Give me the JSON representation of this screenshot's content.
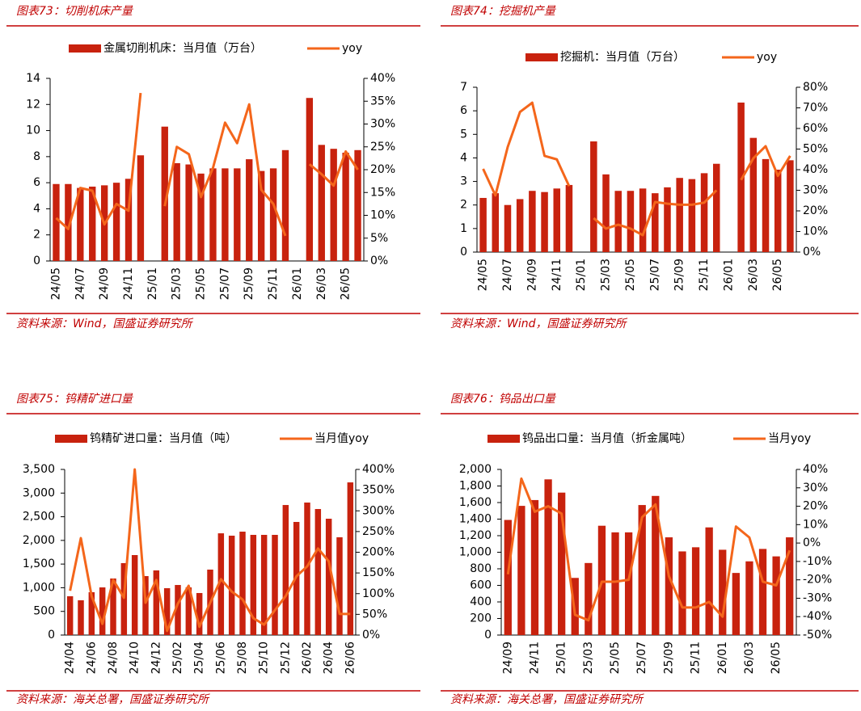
{
  "chart_data": [
    {
      "type": "bar-line",
      "title": "图表73：切削机床产量",
      "source": "资料来源：Wind，国盛证券研究所",
      "categories": [
        "24/05",
        null,
        "24/07",
        null,
        "24/09",
        null,
        "24/11",
        null,
        "25/01",
        null,
        "25/03",
        null,
        "25/05",
        null,
        "25/07",
        null,
        "25/09",
        null,
        "25/11",
        null,
        "26/01",
        null,
        "26/03",
        null,
        "26/05",
        null
      ],
      "series": [
        {
          "name": "金属切削机床：当月值（万台）",
          "type": "bar",
          "color": "#c8220e",
          "values": [
            5.9,
            5.9,
            5.6,
            5.7,
            5.8,
            6.0,
            6.3,
            8.1,
            null,
            10.3,
            7.5,
            7.4,
            6.7,
            7.1,
            7.1,
            7.1,
            7.8,
            6.9,
            7.1,
            8.5,
            null,
            12.5,
            8.9,
            8.6,
            8.3,
            8.5
          ]
        },
        {
          "name": "yoy",
          "type": "line",
          "axis": "y2",
          "color": "#f4661b",
          "values": [
            9.4,
            7,
            16,
            15.4,
            8,
            12.5,
            11,
            36.8,
            null,
            12,
            25,
            23.4,
            14,
            20.4,
            30.3,
            25.8,
            34.3,
            15.6,
            12.5,
            5.5,
            null,
            21.2,
            19,
            16.5,
            24,
            20
          ]
        }
      ],
      "ylim": [
        0,
        14
      ],
      "yticks": [
        0,
        2,
        4,
        6,
        8,
        10,
        12,
        14
      ],
      "y2lim": [
        0,
        40
      ],
      "y2ticks": [
        {
          "value": 0,
          "label": "0%"
        },
        {
          "value": 5,
          "label": "5%"
        },
        {
          "value": 10,
          "label": "10%"
        },
        {
          "value": 15,
          "label": "15%"
        },
        {
          "value": 20,
          "label": "20%"
        },
        {
          "value": 25,
          "label": "25%"
        },
        {
          "value": 30,
          "label": "30%"
        },
        {
          "value": 35,
          "label": "35%"
        },
        {
          "value": 40,
          "label": "40%"
        }
      ]
    },
    {
      "type": "bar-line",
      "title": "图表74：挖掘机产量",
      "source": "资料来源：Wind，国盛证券研究所",
      "categories": [
        "24/05",
        null,
        "24/07",
        null,
        "24/09",
        null,
        "24/11",
        null,
        "25/01",
        null,
        "25/03",
        null,
        "25/05",
        null,
        "25/07",
        null,
        "25/09",
        null,
        "25/11",
        null,
        "26/01",
        null,
        "26/03",
        null,
        "26/05",
        null
      ],
      "series": [
        {
          "name": "挖掘机：当月值（万台）",
          "type": "bar",
          "color": "#c8220e",
          "values": [
            2.3,
            2.5,
            2.0,
            2.25,
            2.6,
            2.55,
            2.7,
            2.85,
            null,
            4.7,
            3.3,
            2.6,
            2.6,
            2.7,
            2.5,
            2.75,
            3.15,
            3.1,
            3.35,
            3.75,
            null,
            6.35,
            4.85,
            3.95,
            3.5,
            3.9
          ]
        },
        {
          "name": "yoy",
          "type": "line",
          "axis": "y2",
          "color": "#f4661b",
          "values": [
            40.4,
            27.5,
            51,
            68,
            72.5,
            46.7,
            45,
            32,
            null,
            16.5,
            11.4,
            13.3,
            11.4,
            8.2,
            24.3,
            23.5,
            23,
            23,
            24,
            30,
            null,
            35,
            45.5,
            51.4,
            37,
            46.7
          ]
        }
      ],
      "ylim": [
        0,
        7
      ],
      "yticks": [
        0,
        1,
        2,
        3,
        4,
        5,
        6,
        7
      ],
      "y2lim": [
        0,
        80
      ],
      "y2ticks": [
        {
          "value": 0,
          "label": "0%"
        },
        {
          "value": 10,
          "label": "10%"
        },
        {
          "value": 20,
          "label": "20%"
        },
        {
          "value": 30,
          "label": "30%"
        },
        {
          "value": 40,
          "label": "40%"
        },
        {
          "value": 50,
          "label": "50%"
        },
        {
          "value": 60,
          "label": "60%"
        },
        {
          "value": 70,
          "label": "70%"
        },
        {
          "value": 80,
          "label": "80%"
        }
      ]
    },
    {
      "type": "bar-line",
      "title": "图表75：钨精矿进口量",
      "source": "资料来源：海关总署，国盛证券研究所",
      "categories": [
        "24/04",
        null,
        "24/06",
        null,
        "24/08",
        null,
        "24/10",
        null,
        "24/12",
        null,
        "25/02",
        null,
        "25/04",
        null,
        "25/06",
        null,
        "25/08",
        null,
        "25/10",
        null,
        "25/12",
        null,
        "26/02",
        null,
        "26/04",
        null,
        "26/06"
      ],
      "series": [
        {
          "name": "钨精矿进口量：当月值（吨）",
          "type": "bar",
          "color": "#c8220e",
          "values": [
            820,
            735,
            905,
            1007,
            1195,
            1520,
            1690,
            1246,
            1366,
            990,
            1058,
            1007,
            888,
            1383,
            2150,
            2100,
            2185,
            2117,
            2117,
            2117,
            2748,
            2390,
            2800,
            2663,
            2458,
            2066,
            3226
          ]
        },
        {
          "name": "当月值yoy",
          "type": "line",
          "axis": "y2",
          "color": "#f4661b",
          "values": [
            107,
            234,
            94,
            27,
            133,
            90,
            400,
            78,
            133,
            10,
            76,
            119,
            20,
            78,
            135,
            105,
            86,
            41,
            25,
            60,
            94,
            142,
            166,
            209,
            178,
            51,
            51
          ]
        }
      ],
      "ylim": [
        0,
        3500
      ],
      "yticks": [
        0,
        500,
        {
          "value": 1000,
          "label": "1,000"
        },
        {
          "value": 1500,
          "label": "1,500"
        },
        {
          "value": 2000,
          "label": "2,000"
        },
        {
          "value": 2500,
          "label": "2,500"
        },
        {
          "value": 3000,
          "label": "3,000"
        },
        {
          "value": 3500,
          "label": "3,500"
        }
      ],
      "y2lim": [
        0,
        400
      ],
      "y2ticks": [
        {
          "value": 0,
          "label": "0%"
        },
        {
          "value": 50,
          "label": "50%"
        },
        {
          "value": 100,
          "label": "100%"
        },
        {
          "value": 150,
          "label": "150%"
        },
        {
          "value": 200,
          "label": "200%"
        },
        {
          "value": 250,
          "label": "250%"
        },
        {
          "value": 300,
          "label": "300%"
        },
        {
          "value": 350,
          "label": "350%"
        },
        {
          "value": 400,
          "label": "400%"
        }
      ]
    },
    {
      "type": "bar-line",
      "title": "图表76：钨品出口量",
      "source": "资料来源：海关总署，国盛证券研究所",
      "categories": [
        "24/09",
        null,
        "24/11",
        null,
        "25/01",
        null,
        "25/03",
        null,
        "25/05",
        null,
        "25/07",
        null,
        "25/09",
        null,
        "25/11",
        null,
        "26/01",
        null,
        "26/03",
        null,
        "26/05",
        null
      ],
      "series": [
        {
          "name": "钨品出口量：当月值（折金属吨）",
          "type": "bar",
          "color": "#c8220e",
          "values": [
            1390,
            1560,
            1630,
            1880,
            1720,
            690,
            870,
            1320,
            1240,
            1240,
            1570,
            1680,
            1180,
            1010,
            1060,
            1300,
            1030,
            750,
            890,
            1040,
            950,
            1180
          ]
        },
        {
          "name": "当月yoy",
          "type": "line",
          "axis": "y2",
          "color": "#f4661b",
          "values": [
            -17,
            35,
            17,
            20,
            16,
            -39,
            -42,
            -21,
            -21,
            -20,
            14,
            21,
            -18,
            -35,
            -35,
            -32,
            -40,
            9,
            3,
            -21,
            -23,
            -4
          ]
        }
      ],
      "ylim": [
        0,
        2000
      ],
      "yticks": [
        0,
        200,
        400,
        600,
        800,
        {
          "value": 1000,
          "label": "1,000"
        },
        {
          "value": 1200,
          "label": "1,200"
        },
        {
          "value": 1400,
          "label": "1,400"
        },
        {
          "value": 1600,
          "label": "1,600"
        },
        {
          "value": 1800,
          "label": "1,800"
        },
        {
          "value": 2000,
          "label": "2,000"
        }
      ],
      "y2lim": [
        -50,
        40
      ],
      "y2ticks": [
        {
          "value": -50,
          "label": "-50%"
        },
        {
          "value": -40,
          "label": "-40%"
        },
        {
          "value": -30,
          "label": "-30%"
        },
        {
          "value": -20,
          "label": "-20%"
        },
        {
          "value": -10,
          "label": "-10%"
        },
        {
          "value": 0,
          "label": "0%"
        },
        {
          "value": 10,
          "label": "10%"
        },
        {
          "value": 20,
          "label": "20%"
        },
        {
          "value": 30,
          "label": "30%"
        },
        {
          "value": 40,
          "label": "40%"
        }
      ]
    }
  ]
}
